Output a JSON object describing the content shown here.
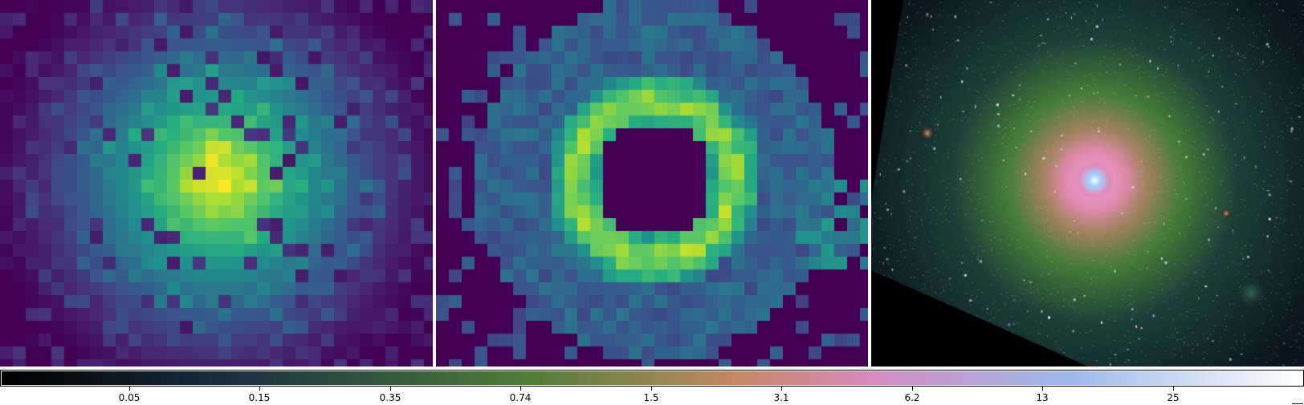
{
  "panels": [
    {
      "name": "central-source",
      "image": "bright compact source centered near the upper middle with a halo"
    },
    {
      "name": "residual-ring",
      "image": "ring-shaped residual with empty center"
    },
    {
      "name": "galaxy-composite",
      "image": "large elliptical galaxy with a bright core and sparse surrounding sources"
    }
  ],
  "colorbar": {
    "ticks": [
      "0.05",
      "0.15",
      "0.35",
      "0.74",
      "1.5",
      "3.1",
      "6.2",
      "13",
      "25"
    ],
    "colors": {
      "start": "#000000",
      "mid_low": "#1b3142",
      "mid": "#4d7e38",
      "mid_high": "#c88868",
      "high": "#d58bc0",
      "upper": "#9cb9ec",
      "end": "#ffffff"
    }
  }
}
